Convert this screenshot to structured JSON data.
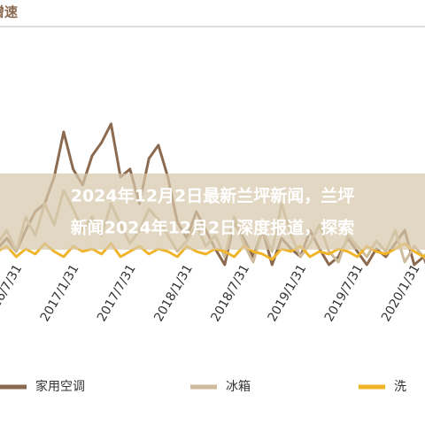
{
  "chart_data": {
    "type": "line",
    "title": "增速",
    "categories": [
      null,
      null,
      "2016/7/31",
      null,
      null,
      null,
      null,
      null,
      "2017/1/31",
      null,
      null,
      null,
      null,
      null,
      "2017/7/31",
      null,
      null,
      null,
      null,
      null,
      "2018/1/31",
      null,
      null,
      null,
      null,
      null,
      "2018/7/31",
      null,
      null,
      null,
      null,
      null,
      "2019/1/31",
      null,
      null,
      null,
      null,
      null,
      "2019/7/31",
      null,
      null,
      null,
      null,
      null,
      "2020/1/31",
      null,
      null,
      null
    ],
    "series": [
      {
        "name": "家用空调",
        "color": "#8b6a50",
        "values": [
          13,
          17,
          12,
          20,
          27,
          30,
          40,
          57,
          43,
          37,
          48,
          53,
          60,
          40,
          43,
          30,
          47,
          52,
          40,
          23,
          17,
          27,
          20,
          13,
          7,
          23,
          17,
          10,
          20,
          7,
          17,
          13,
          10,
          20,
          13,
          7,
          10,
          17,
          12,
          7,
          13,
          10,
          15,
          20,
          7,
          10,
          0,
          -10
        ]
      },
      {
        "name": "冰箱",
        "color": "#cdbb9c",
        "values": [
          15,
          20,
          12,
          25,
          18,
          30,
          22,
          35,
          28,
          20,
          25,
          18,
          30,
          22,
          15,
          20,
          28,
          24,
          18,
          12,
          16,
          22,
          14,
          18,
          10,
          25,
          15,
          8,
          20,
          12,
          30,
          18,
          10,
          15,
          22,
          12,
          8,
          18,
          14,
          10,
          16,
          12,
          20,
          8,
          14,
          10,
          6,
          12
        ]
      },
      {
        "name": "洗",
        "color": "#f0b429",
        "values": [
          12,
          14,
          10,
          13,
          11,
          15,
          12,
          10,
          14,
          12,
          13,
          11,
          15,
          10,
          12,
          14,
          11,
          13,
          12,
          10,
          14,
          12,
          11,
          13,
          12,
          10,
          14,
          12,
          11,
          9,
          13,
          12,
          14,
          10,
          12,
          11,
          13,
          12,
          10,
          14,
          12,
          11,
          13,
          15,
          12,
          10,
          14,
          12
        ]
      }
    ],
    "ylim": [
      -20,
      100
    ]
  },
  "banner": {
    "lines": [
      "2024年12月2日最新兰坪新闻，兰坪",
      "新闻2024年12月2日深度报道，探索"
    ]
  }
}
